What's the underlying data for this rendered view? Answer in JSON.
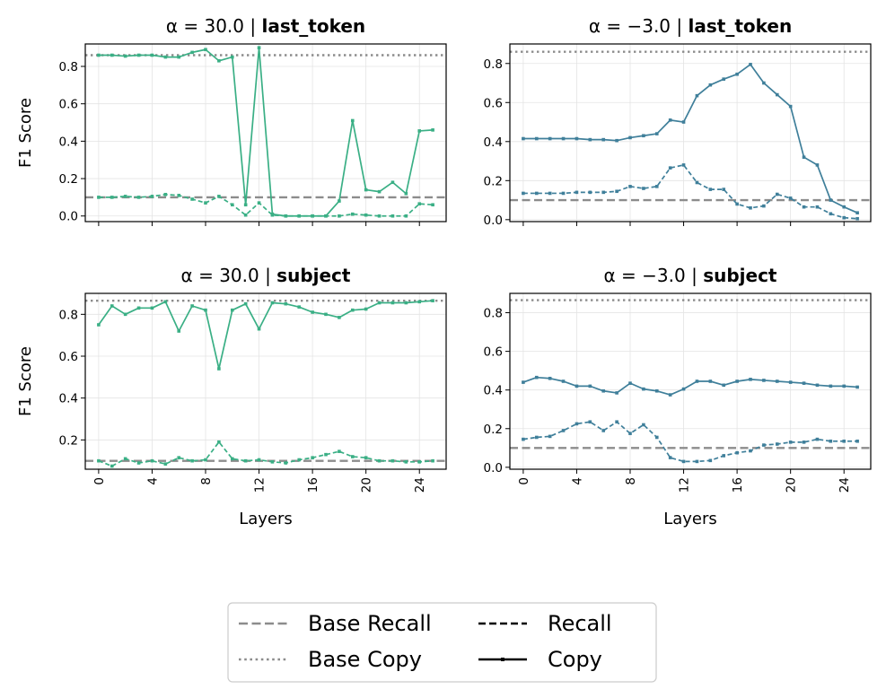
{
  "chart_data": [
    {
      "type": "line",
      "title_prefix": "α = 30.0 | ",
      "title_bold": "last_token",
      "ylabel": "F1 Score",
      "xlabel": "",
      "xlim": [
        -1,
        26
      ],
      "ylim": [
        -0.03,
        0.92
      ],
      "xticks": [
        0,
        4,
        8,
        12,
        16,
        20,
        24
      ],
      "yticks": [
        0.0,
        0.2,
        0.4,
        0.6,
        0.8
      ],
      "ytick_labels": [
        "0.0",
        "0.2",
        "0.4",
        "0.6",
        "0.8"
      ],
      "show_xtick_labels": false,
      "color": "#3aaf85",
      "base_recall": 0.1,
      "base_copy": 0.86,
      "series": [
        {
          "kind": "copy",
          "values": [
            0.86,
            0.86,
            0.855,
            0.86,
            0.86,
            0.85,
            0.85,
            0.875,
            0.89,
            0.83,
            0.85,
            0.06,
            0.9,
            0.01,
            0.0,
            0.0,
            0.0,
            0.0,
            0.08,
            0.51,
            0.14,
            0.13,
            0.18,
            0.12,
            0.455,
            0.46
          ]
        },
        {
          "kind": "recall",
          "values": [
            0.1,
            0.1,
            0.105,
            0.1,
            0.105,
            0.115,
            0.11,
            0.09,
            0.07,
            0.105,
            0.06,
            0.005,
            0.07,
            0.005,
            0.0,
            0.0,
            0.0,
            0.0,
            0.0,
            0.01,
            0.005,
            0.0,
            0.0,
            0.0,
            0.065,
            0.06
          ]
        }
      ]
    },
    {
      "type": "line",
      "title_prefix": "α = −3.0 | ",
      "title_bold": "last_token",
      "ylabel": "",
      "xlabel": "",
      "xlim": [
        -1,
        26
      ],
      "ylim": [
        -0.01,
        0.9
      ],
      "xticks": [
        0,
        4,
        8,
        12,
        16,
        20,
        24
      ],
      "yticks": [
        0.0,
        0.2,
        0.4,
        0.6,
        0.8
      ],
      "ytick_labels": [
        "0.0",
        "0.2",
        "0.4",
        "0.6",
        "0.8"
      ],
      "show_xtick_labels": false,
      "color": "#3f7f9a",
      "base_recall": 0.1,
      "base_copy": 0.86,
      "series": [
        {
          "kind": "copy",
          "values": [
            0.415,
            0.415,
            0.415,
            0.415,
            0.415,
            0.41,
            0.41,
            0.405,
            0.42,
            0.43,
            0.44,
            0.51,
            0.5,
            0.635,
            0.69,
            0.72,
            0.745,
            0.795,
            0.7,
            0.64,
            0.58,
            0.32,
            0.28,
            0.1,
            0.065,
            0.035
          ]
        },
        {
          "kind": "recall",
          "values": [
            0.135,
            0.135,
            0.135,
            0.135,
            0.14,
            0.14,
            0.14,
            0.145,
            0.17,
            0.16,
            0.17,
            0.265,
            0.28,
            0.19,
            0.155,
            0.155,
            0.08,
            0.06,
            0.07,
            0.13,
            0.11,
            0.065,
            0.065,
            0.03,
            0.01,
            0.005
          ]
        }
      ]
    },
    {
      "type": "line",
      "title_prefix": "α = 30.0 | ",
      "title_bold": "subject",
      "ylabel": "F1 Score",
      "xlabel": "Layers",
      "xlim": [
        -1,
        26
      ],
      "ylim": [
        0.06,
        0.9
      ],
      "xticks": [
        0,
        4,
        8,
        12,
        16,
        20,
        24
      ],
      "yticks": [
        0.2,
        0.4,
        0.6,
        0.8
      ],
      "ytick_labels": [
        "0.2",
        "0.4",
        "0.6",
        "0.8"
      ],
      "show_xtick_labels": true,
      "color": "#3aaf85",
      "base_recall": 0.1,
      "base_copy": 0.865,
      "series": [
        {
          "kind": "copy",
          "values": [
            0.75,
            0.84,
            0.8,
            0.83,
            0.83,
            0.86,
            0.72,
            0.84,
            0.82,
            0.54,
            0.82,
            0.85,
            0.73,
            0.855,
            0.85,
            0.835,
            0.81,
            0.8,
            0.785,
            0.82,
            0.825,
            0.855,
            0.855,
            0.855,
            0.86,
            0.865
          ]
        },
        {
          "kind": "recall",
          "values": [
            0.1,
            0.075,
            0.11,
            0.09,
            0.1,
            0.085,
            0.115,
            0.1,
            0.105,
            0.19,
            0.11,
            0.1,
            0.105,
            0.095,
            0.09,
            0.105,
            0.115,
            0.13,
            0.145,
            0.12,
            0.115,
            0.1,
            0.1,
            0.095,
            0.095,
            0.1
          ]
        }
      ]
    },
    {
      "type": "line",
      "title_prefix": "α = −3.0 | ",
      "title_bold": "subject",
      "ylabel": "",
      "xlabel": "Layers",
      "xlim": [
        -1,
        26
      ],
      "ylim": [
        -0.01,
        0.9
      ],
      "xticks": [
        0,
        4,
        8,
        12,
        16,
        20,
        24
      ],
      "yticks": [
        0.0,
        0.2,
        0.4,
        0.6,
        0.8
      ],
      "ytick_labels": [
        "0.0",
        "0.2",
        "0.4",
        "0.6",
        "0.8"
      ],
      "show_xtick_labels": true,
      "color": "#3f7f9a",
      "base_recall": 0.1,
      "base_copy": 0.865,
      "series": [
        {
          "kind": "copy",
          "values": [
            0.44,
            0.465,
            0.46,
            0.445,
            0.42,
            0.42,
            0.395,
            0.385,
            0.435,
            0.405,
            0.395,
            0.375,
            0.405,
            0.445,
            0.445,
            0.425,
            0.445,
            0.455,
            0.45,
            0.445,
            0.44,
            0.435,
            0.425,
            0.42,
            0.42,
            0.415
          ]
        },
        {
          "kind": "recall",
          "values": [
            0.145,
            0.155,
            0.16,
            0.19,
            0.225,
            0.235,
            0.19,
            0.235,
            0.175,
            0.22,
            0.155,
            0.05,
            0.03,
            0.03,
            0.035,
            0.06,
            0.075,
            0.085,
            0.115,
            0.12,
            0.13,
            0.13,
            0.145,
            0.135,
            0.135,
            0.135
          ]
        }
      ]
    }
  ],
  "legend": {
    "position": "bottom-center",
    "entries": [
      {
        "label": "Base Recall",
        "style": "dashed-gray"
      },
      {
        "label": "Recall",
        "style": "dashed-black"
      },
      {
        "label": "Base Copy",
        "style": "dotted-gray"
      },
      {
        "label": "Copy",
        "style": "solid-black-marker"
      }
    ]
  }
}
